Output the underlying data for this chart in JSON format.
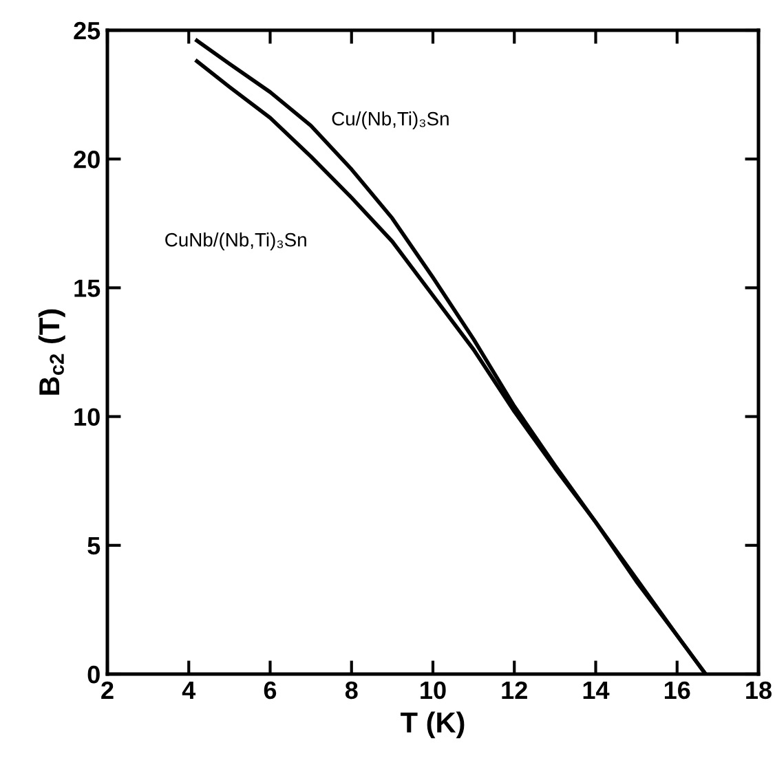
{
  "chart_data": {
    "type": "line",
    "xlabel": "T (K)",
    "ylabel": "B$_{c2}$ (T)",
    "xlim": [
      2,
      18
    ],
    "ylim": [
      0,
      25
    ],
    "xticks": [
      2,
      4,
      6,
      8,
      10,
      12,
      14,
      16,
      18
    ],
    "yticks": [
      0,
      5,
      10,
      15,
      20,
      25
    ],
    "grid": false,
    "legend": false,
    "marker": "none",
    "line_style": "solid",
    "series": [
      {
        "name": "Cu/(Nb,Ti)₃Sn",
        "color": "#000000",
        "x": [
          4.2,
          5,
          6,
          7,
          8,
          9,
          10,
          11,
          12,
          13,
          14,
          15,
          16,
          16.7
        ],
        "values": [
          24.6,
          23.7,
          22.6,
          21.3,
          19.6,
          17.7,
          15.4,
          13.0,
          10.4,
          8.1,
          5.9,
          3.7,
          1.5,
          0
        ]
      },
      {
        "name": "CuNb/(Nb,Ti)₃Sn",
        "color": "#000000",
        "x": [
          4.2,
          5,
          6,
          7,
          8,
          9,
          10,
          11,
          12,
          13,
          14,
          15,
          16,
          16.7
        ],
        "values": [
          23.8,
          22.8,
          21.6,
          20.1,
          18.5,
          16.8,
          14.7,
          12.6,
          10.2,
          8.0,
          5.9,
          3.6,
          1.5,
          0
        ]
      }
    ]
  }
}
